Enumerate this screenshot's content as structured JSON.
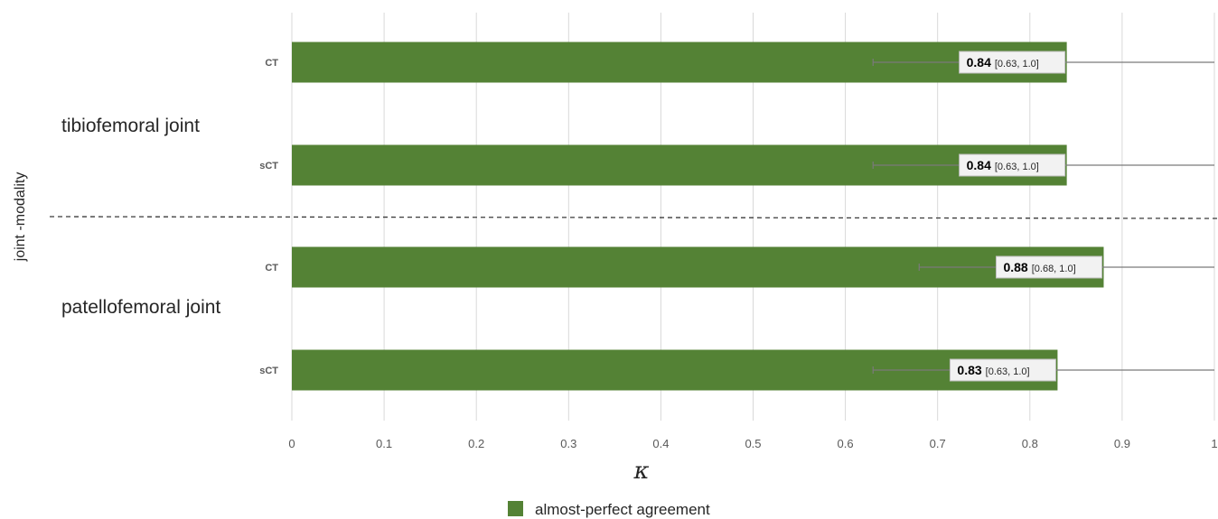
{
  "chart_data": {
    "type": "bar",
    "orientation": "horizontal",
    "title": "",
    "xlabel": "κ",
    "ylabel": "joint -modality",
    "xlim": [
      0,
      1
    ],
    "xticks": [
      "0",
      "0.1",
      "0.2",
      "0.3",
      "0.4",
      "0.5",
      "0.6",
      "0.7",
      "0.8",
      "0.9",
      "1"
    ],
    "grid": true,
    "legend_position": "bottom",
    "groups": [
      {
        "label": "tibiofemoral joint",
        "categories": [
          "CT",
          "sCT"
        ]
      },
      {
        "label": "patellofemoral joint",
        "categories": [
          "CT",
          "sCT"
        ]
      }
    ],
    "categories": [
      "CT",
      "sCT",
      "CT",
      "sCT"
    ],
    "series": [
      {
        "name": "almost-perfect agreement",
        "color": "#548235",
        "values": [
          0.84,
          0.84,
          0.88,
          0.83
        ],
        "ci_lower": [
          0.63,
          0.63,
          0.68,
          0.63
        ],
        "ci_upper": [
          1.0,
          1.0,
          1.0,
          1.0
        ],
        "value_labels": [
          "0.84",
          "0.84",
          "0.88",
          "0.83"
        ],
        "ci_labels": [
          "[0.63, 1.0]",
          "[0.63, 1.0]",
          "[0.68, 1.0]",
          "[0.63, 1.0]"
        ]
      }
    ]
  }
}
